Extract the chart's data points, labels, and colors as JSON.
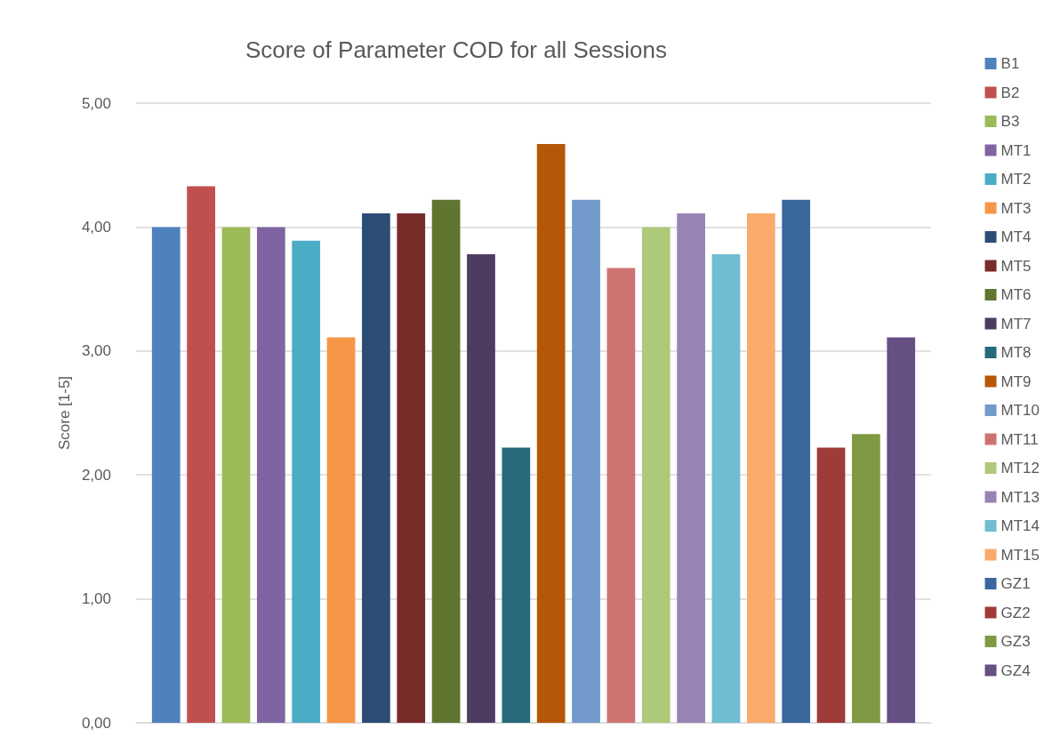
{
  "chart_data": {
    "type": "bar",
    "title": "Score of Parameter COD for all Sessions",
    "ylabel": "Score [1-5]",
    "categories": [
      null
    ],
    "ylim": [
      0,
      5
    ],
    "yticks": [
      {
        "value": 0,
        "label": "0,00"
      },
      {
        "value": 1,
        "label": "1,00"
      },
      {
        "value": 2,
        "label": "2,00"
      },
      {
        "value": 3,
        "label": "3,00"
      },
      {
        "value": 4,
        "label": "4,00"
      },
      {
        "value": 5,
        "label": "5,00"
      }
    ],
    "grid": "y",
    "legend": "right",
    "series": [
      {
        "name": "B1",
        "color": "#4f81bd",
        "values": [
          4.0
        ]
      },
      {
        "name": "B2",
        "color": "#c0504d",
        "values": [
          4.33
        ]
      },
      {
        "name": "B3",
        "color": "#9bbb59",
        "values": [
          4.0
        ]
      },
      {
        "name": "MT1",
        "color": "#8064a2",
        "values": [
          4.0
        ]
      },
      {
        "name": "MT2",
        "color": "#4bacc6",
        "values": [
          3.89
        ]
      },
      {
        "name": "MT3",
        "color": "#f79646",
        "values": [
          3.11
        ]
      },
      {
        "name": "MT4",
        "color": "#2c4d75",
        "values": [
          4.11
        ]
      },
      {
        "name": "MT5",
        "color": "#772c2a",
        "values": [
          4.11
        ]
      },
      {
        "name": "MT6",
        "color": "#5f7530",
        "values": [
          4.22
        ]
      },
      {
        "name": "MT7",
        "color": "#4d3b62",
        "values": [
          3.78
        ]
      },
      {
        "name": "MT8",
        "color": "#276a7c",
        "values": [
          2.22
        ]
      },
      {
        "name": "MT9",
        "color": "#b65708",
        "values": [
          4.67
        ]
      },
      {
        "name": "MT10",
        "color": "#729aca",
        "values": [
          4.22
        ]
      },
      {
        "name": "MT11",
        "color": "#cd7371",
        "values": [
          3.67
        ]
      },
      {
        "name": "MT12",
        "color": "#afc97a",
        "values": [
          4.0
        ]
      },
      {
        "name": "MT13",
        "color": "#9983b5",
        "values": [
          4.11
        ]
      },
      {
        "name": "MT14",
        "color": "#6fbdd1",
        "values": [
          3.78
        ]
      },
      {
        "name": "MT15",
        "color": "#f9ab6b",
        "values": [
          4.11
        ]
      },
      {
        "name": "GZ1",
        "color": "#3a679c",
        "values": [
          4.22
        ]
      },
      {
        "name": "GZ2",
        "color": "#9f3b38",
        "values": [
          2.22
        ]
      },
      {
        "name": "GZ3",
        "color": "#7f9a42",
        "values": [
          2.33
        ]
      },
      {
        "name": "GZ4",
        "color": "#664f83",
        "values": [
          3.11
        ]
      }
    ]
  }
}
